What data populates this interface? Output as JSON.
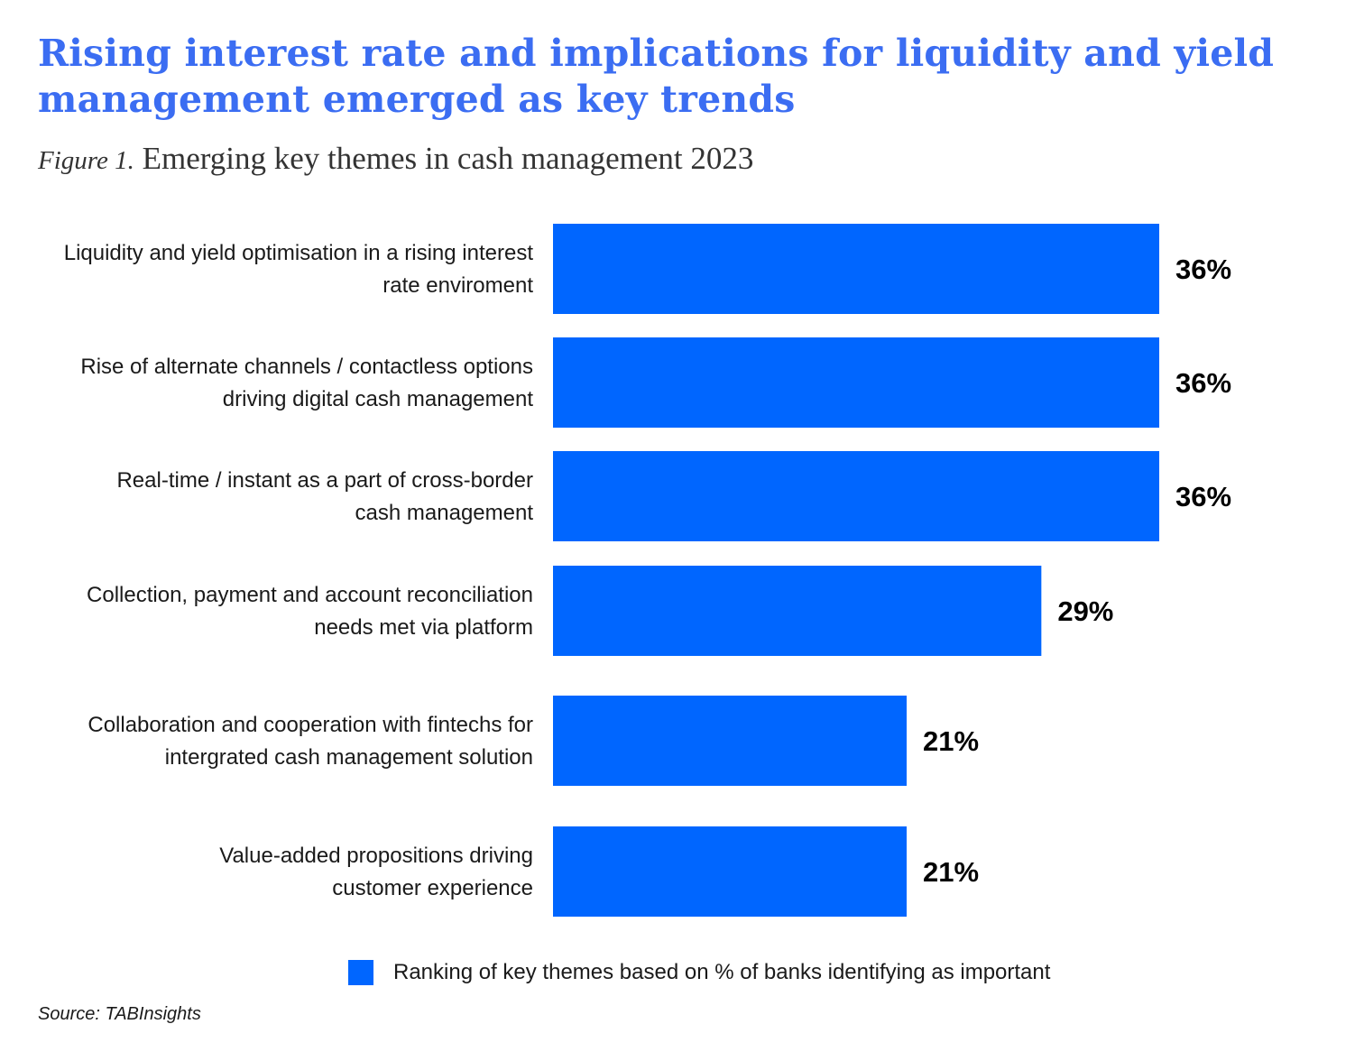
{
  "header": {
    "title": "Rising interest rate and implications for liquidity and yield management emerged as key trends",
    "figure_prefix": "Figure 1.",
    "figure_title": "Emerging key themes in cash management 2023"
  },
  "chart_data": {
    "type": "bar",
    "orientation": "horizontal",
    "categories": [
      [
        "Liquidity and yield optimisation in a rising interest",
        "rate enviroment"
      ],
      [
        "Rise of alternate channels / contactless options",
        "driving digital cash management"
      ],
      [
        "Real-time / instant as a part of cross-border",
        "cash management"
      ],
      [
        "Collection, payment  and account reconciliation",
        "needs met via platform"
      ],
      [
        "Collaboration and cooperation with fintechs for",
        "intergrated cash management solution"
      ],
      [
        "Value-added propositions driving",
        "customer experience"
      ]
    ],
    "values": [
      36,
      36,
      36,
      29,
      21,
      21
    ],
    "value_labels": [
      "36%",
      "36%",
      "36%",
      "29%",
      "21%",
      "21%"
    ],
    "series": [
      {
        "name": "Ranking of key themes based on % of banks identifying as important",
        "values": [
          36,
          36,
          36,
          29,
          21,
          21
        ]
      }
    ],
    "bar_color": "#0066ff",
    "legend_position": "bottom",
    "grid": false
  },
  "legend": {
    "label": "Ranking of key themes based on % of banks identifying as important",
    "color": "#0066ff"
  },
  "footer": {
    "source": "Source: TABInsights"
  }
}
